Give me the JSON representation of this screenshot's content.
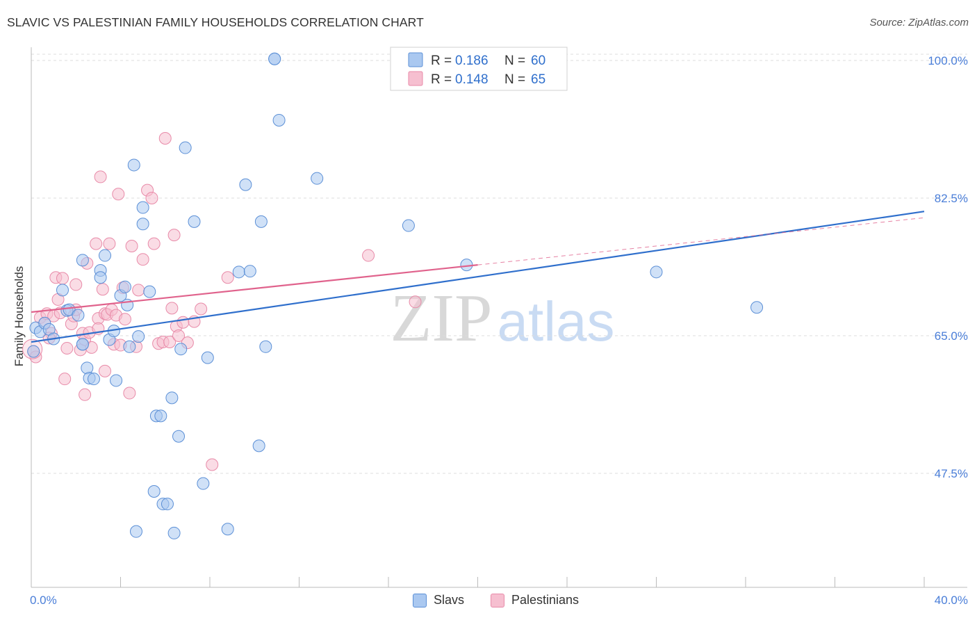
{
  "title": "SLAVIC VS PALESTINIAN FAMILY HOUSEHOLDS CORRELATION CHART",
  "source": "Source: ZipAtlas.com",
  "watermark": {
    "zip": "ZIP",
    "atlas": "atlas"
  },
  "colors": {
    "slavs_fill": "#aac8f0",
    "slavs_stroke": "#5b8fd6",
    "slavs_line": "#2f6fcc",
    "pal_fill": "#f6bfd0",
    "pal_stroke": "#e88aa8",
    "pal_line": "#e0628c",
    "axis_text": "#4a7ed8",
    "grid": "#dddddd"
  },
  "legend": {
    "slavs": {
      "r_label": "R = ",
      "r_value": "0.186",
      "n_label": "N = ",
      "n_value": "60"
    },
    "palestinians": {
      "r_label": "R = ",
      "r_value": "0.148",
      "n_label": "N = ",
      "n_value": "65"
    }
  },
  "bottom_legend": {
    "slavs": "Slavs",
    "palestinians": "Palestinians"
  },
  "chart_data": {
    "type": "scatter",
    "title": "SLAVIC VS PALESTINIAN FAMILY HOUSEHOLDS CORRELATION CHART",
    "xlabel": "",
    "ylabel": "Family Households",
    "xlim": [
      0,
      40
    ],
    "ylim": [
      33,
      101.5
    ],
    "x_tick_labels": [
      {
        "value": 0,
        "label": "0.0%"
      },
      {
        "value": 40,
        "label": "40.0%"
      }
    ],
    "y_tick_labels": [
      {
        "value": 100,
        "label": "100.0%"
      },
      {
        "value": 82.5,
        "label": "82.5%"
      },
      {
        "value": 65,
        "label": "65.0%"
      },
      {
        "value": 47.5,
        "label": "47.5%"
      }
    ],
    "series": [
      {
        "name": "Slavs",
        "r": 0.186,
        "n": 60,
        "trend": {
          "x0": 0,
          "y0": 64.2,
          "x1": 40,
          "y1": 80.8
        },
        "points": [
          [
            0.2,
            66
          ],
          [
            0.4,
            65.5
          ],
          [
            0.6,
            66.6
          ],
          [
            0.8,
            65.8
          ],
          [
            1.0,
            64.6
          ],
          [
            1.4,
            70.8
          ],
          [
            1.6,
            68.2
          ],
          [
            1.7,
            68.3
          ],
          [
            2.1,
            67.6
          ],
          [
            2.3,
            63.9
          ],
          [
            2.3,
            63.9
          ],
          [
            2.3,
            74.6
          ],
          [
            2.5,
            60.9
          ],
          [
            2.6,
            59.6
          ],
          [
            2.8,
            59.5
          ],
          [
            3.1,
            73.3
          ],
          [
            3.1,
            72.4
          ],
          [
            3.3,
            75.2
          ],
          [
            3.5,
            64.5
          ],
          [
            3.7,
            65.6
          ],
          [
            3.8,
            59.3
          ],
          [
            4.0,
            70.1
          ],
          [
            4.2,
            71.2
          ],
          [
            4.3,
            68.9
          ],
          [
            4.4,
            63.6
          ],
          [
            4.6,
            86.7
          ],
          [
            4.7,
            40.1
          ],
          [
            4.8,
            64.9
          ],
          [
            5.0,
            81.3
          ],
          [
            5.0,
            79.2
          ],
          [
            5.3,
            70.6
          ],
          [
            5.5,
            45.2
          ],
          [
            5.6,
            54.8
          ],
          [
            5.8,
            54.8
          ],
          [
            5.9,
            43.6
          ],
          [
            6.1,
            43.6
          ],
          [
            6.3,
            57.1
          ],
          [
            6.4,
            39.9
          ],
          [
            6.6,
            52.2
          ],
          [
            6.7,
            63.3
          ],
          [
            6.9,
            88.9
          ],
          [
            7.3,
            79.5
          ],
          [
            7.7,
            46.2
          ],
          [
            7.9,
            62.2
          ],
          [
            8.8,
            40.4
          ],
          [
            9.3,
            73.1
          ],
          [
            9.6,
            84.2
          ],
          [
            9.8,
            73.2
          ],
          [
            10.2,
            51
          ],
          [
            10.3,
            79.5
          ],
          [
            10.5,
            63.6
          ],
          [
            10.9,
            100.2
          ],
          [
            10.9,
            100.2
          ],
          [
            11.1,
            92.4
          ],
          [
            12.8,
            85
          ],
          [
            16.9,
            79
          ],
          [
            19.5,
            74
          ],
          [
            28,
            73.1
          ],
          [
            32.5,
            68.6
          ],
          [
            0.1,
            63
          ]
        ]
      },
      {
        "name": "Palestinians",
        "r": 0.148,
        "n": 65,
        "trend": {
          "x0": 0,
          "y0": 68.0,
          "x1": 20.0,
          "y1": 74.0
        },
        "trend_dashed": {
          "x0": 20.0,
          "y0": 74.0,
          "x1": 40,
          "y1": 80
        },
        "points": [
          [
            0.1,
            63
          ],
          [
            0.2,
            62.3
          ],
          [
            0.4,
            67.3
          ],
          [
            0.6,
            66.6
          ],
          [
            0.7,
            67.8
          ],
          [
            0.9,
            65.3
          ],
          [
            1.0,
            67.5
          ],
          [
            1.1,
            72.4
          ],
          [
            1.2,
            69.6
          ],
          [
            1.3,
            67.9
          ],
          [
            1.4,
            72.3
          ],
          [
            1.5,
            59.5
          ],
          [
            1.6,
            63.4
          ],
          [
            1.8,
            66.5
          ],
          [
            1.9,
            67.5
          ],
          [
            2.0,
            71.5
          ],
          [
            2.2,
            63.2
          ],
          [
            2.3,
            65.3
          ],
          [
            2.4,
            64.5
          ],
          [
            2.4,
            57.5
          ],
          [
            2.5,
            74.2
          ],
          [
            2.6,
            65.4
          ],
          [
            2.7,
            63.5
          ],
          [
            2.9,
            76.7
          ],
          [
            3.0,
            67.2
          ],
          [
            3.0,
            65.9
          ],
          [
            3.1,
            85.2
          ],
          [
            3.2,
            70.9
          ],
          [
            3.3,
            67.8
          ],
          [
            3.4,
            67.7
          ],
          [
            3.5,
            76.7
          ],
          [
            3.6,
            68.3
          ],
          [
            3.7,
            63.9
          ],
          [
            3.8,
            67.6
          ],
          [
            3.9,
            83.0
          ],
          [
            4.0,
            63.8
          ],
          [
            4.1,
            71.1
          ],
          [
            4.2,
            67.1
          ],
          [
            4.4,
            57.7
          ],
          [
            4.5,
            76.4
          ],
          [
            4.7,
            63.6
          ],
          [
            4.8,
            70.8
          ],
          [
            5.0,
            74.7
          ],
          [
            5.2,
            83.5
          ],
          [
            5.4,
            82.5
          ],
          [
            5.5,
            76.7
          ],
          [
            5.7,
            64.0
          ],
          [
            5.9,
            64.2
          ],
          [
            6.0,
            90.1
          ],
          [
            6.2,
            64.2
          ],
          [
            6.4,
            77.8
          ],
          [
            6.5,
            66.2
          ],
          [
            6.6,
            65.0
          ],
          [
            6.8,
            66.7
          ],
          [
            7.0,
            64.1
          ],
          [
            7.3,
            66.8
          ],
          [
            7.6,
            68.4
          ],
          [
            8.1,
            48.6
          ],
          [
            8.8,
            72.4
          ],
          [
            15.1,
            75.2
          ],
          [
            17.2,
            69.3
          ],
          [
            2.0,
            68.3
          ],
          [
            0.8,
            64.7
          ],
          [
            3.3,
            60.5
          ],
          [
            6.3,
            68.5
          ]
        ]
      }
    ]
  }
}
